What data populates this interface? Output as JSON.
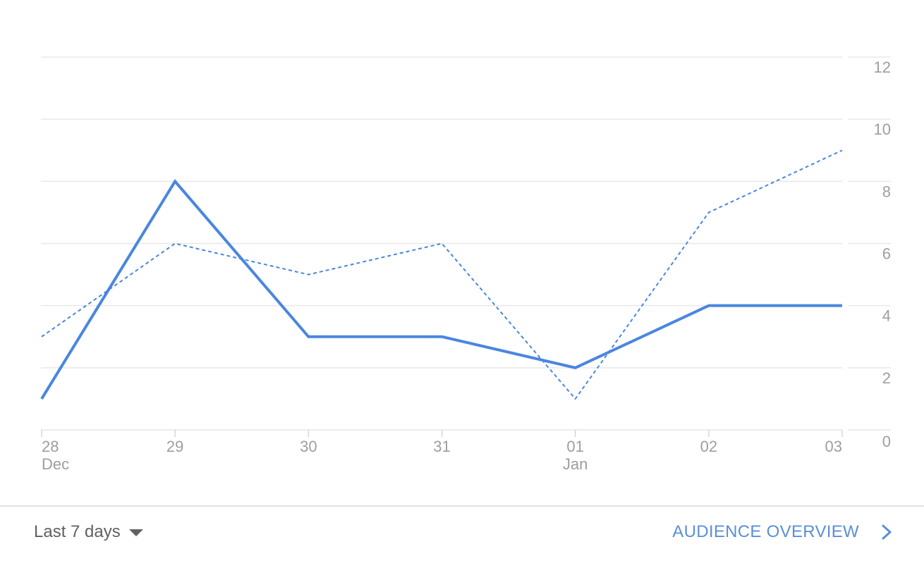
{
  "chart_data": {
    "type": "line",
    "categories": [
      "28",
      "29",
      "30",
      "31",
      "01",
      "02",
      "03"
    ],
    "category_sublabels": [
      "Dec",
      "",
      "",
      "",
      "Jan",
      "",
      ""
    ],
    "series": [
      {
        "style": "solid",
        "color": "#4a86e0",
        "values": [
          1,
          8,
          3,
          3,
          2,
          4,
          4
        ]
      },
      {
        "style": "dashed",
        "color": "#4a86e0",
        "values": [
          3,
          6,
          5,
          6,
          1,
          7,
          9
        ]
      }
    ],
    "ylim": [
      0,
      12
    ],
    "yticks": [
      0,
      2,
      4,
      6,
      8,
      10,
      12
    ],
    "y_axis_position": "right",
    "grid": true
  },
  "footer": {
    "range_label": "Last 7 days",
    "overview_label": "AUDIENCE OVERVIEW"
  },
  "icons": {
    "range_caret": "caret-down-icon",
    "overview_chevron": "chevron-right-icon"
  }
}
